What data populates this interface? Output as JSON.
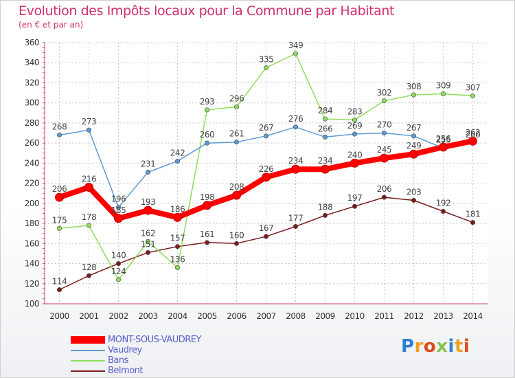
{
  "title": "Evolution des Impôts locaux pour la Commune par Habitant",
  "subtitle": "(en € et par an)",
  "chart_data": {
    "type": "line",
    "x": [
      "2000",
      "2001",
      "2002",
      "2003",
      "2004",
      "2005",
      "2006",
      "2007",
      "2008",
      "2009",
      "2010",
      "2011",
      "2012",
      "2013",
      "2014"
    ],
    "ylim": [
      100,
      360
    ],
    "yticks": [
      "100",
      "120",
      "140",
      "160",
      "180",
      "200",
      "220",
      "240",
      "260",
      "280",
      "300",
      "320",
      "340",
      "360"
    ],
    "grid": true,
    "legend": "bottom-left",
    "series": [
      {
        "name": "MONT-SOUS-VAUDREY",
        "color": "#ff0000",
        "values": [
          206,
          216,
          185,
          193,
          186,
          198,
          208,
          226,
          234,
          234,
          240,
          245,
          249,
          256,
          262
        ],
        "labels": [
          "206",
          "216",
          "185",
          "193",
          "186",
          "198",
          "208",
          "226",
          "234",
          "234",
          "240",
          "245",
          "249",
          "256",
          "262"
        ]
      },
      {
        "name": "Vaudrey",
        "color": "#5d9bd3",
        "values": [
          268,
          273,
          196,
          231,
          242,
          260,
          261,
          267,
          276,
          266,
          269,
          270,
          267,
          255,
          260
        ],
        "labels": [
          "268",
          "273",
          "196",
          "231",
          "242",
          "260",
          "261",
          "267",
          "276",
          "266",
          "269",
          "270",
          "267",
          "255",
          "260"
        ]
      },
      {
        "name": "Bans",
        "color": "#8fdd5c",
        "values": [
          175,
          178,
          124,
          162,
          136,
          293,
          296,
          335,
          349,
          284,
          283,
          302,
          308,
          309,
          307
        ],
        "labels": [
          "175",
          "178",
          "124",
          "162",
          "136",
          "293",
          "296",
          "335",
          "349",
          "284",
          "283",
          "302",
          "308",
          "309",
          "307"
        ]
      },
      {
        "name": "Belmont",
        "color": "#7a1c1c",
        "values": [
          114,
          128,
          140,
          151,
          157,
          161,
          160,
          167,
          177,
          188,
          197,
          206,
          203,
          192,
          181
        ],
        "labels": [
          "114",
          "128",
          "140",
          "151",
          "157",
          "161",
          "160",
          "167",
          "177",
          "188",
          "197",
          "206",
          "203",
          "192",
          "181"
        ]
      }
    ]
  },
  "legend": {
    "items": [
      {
        "label": "MONT-SOUS-VAUDREY",
        "color": "#ff0000"
      },
      {
        "label": "Vaudrey",
        "color": "#5d9bd3"
      },
      {
        "label": "Bans",
        "color": "#8fdd5c"
      },
      {
        "label": "Belmont",
        "color": "#7a1c1c"
      }
    ]
  },
  "logo": {
    "text": "Proxiti",
    "letters": [
      "P",
      "r",
      "o",
      "x",
      "i",
      "t",
      "i"
    ],
    "colors": [
      "#2e7fd1",
      "#f0a020",
      "#e04a1a",
      "#8bc34a",
      "#2e7fd1",
      "#f0a020",
      "#e04a1a"
    ]
  }
}
